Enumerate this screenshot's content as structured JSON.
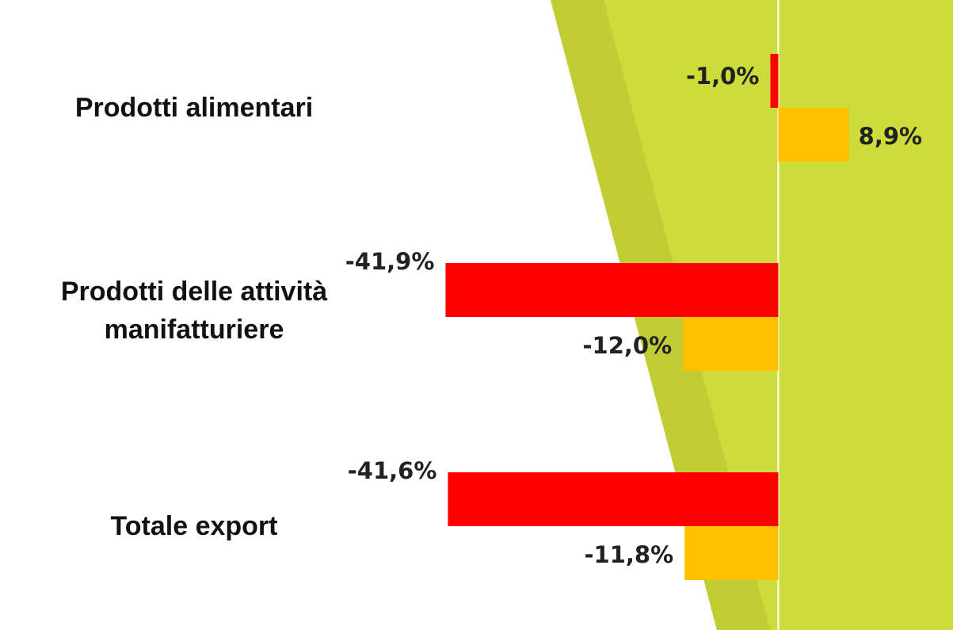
{
  "chart_data": {
    "type": "hbar",
    "categories": [
      "Prodotti alimentari",
      "Prodotti delle attività manifatturiere",
      "Totale export"
    ],
    "series": [
      {
        "color": "#ff0000",
        "values": [
          -1.0,
          -41.9,
          -41.6
        ],
        "value_labels": [
          "-1,0%",
          "-41,9%",
          "-41,6%"
        ]
      },
      {
        "color": "#ffc000",
        "values": [
          8.9,
          -12.0,
          -11.8
        ],
        "value_labels": [
          "8,9%",
          "-12,0%",
          "-11,8%"
        ]
      }
    ],
    "xlim": [
      -98,
      22
    ]
  }
}
